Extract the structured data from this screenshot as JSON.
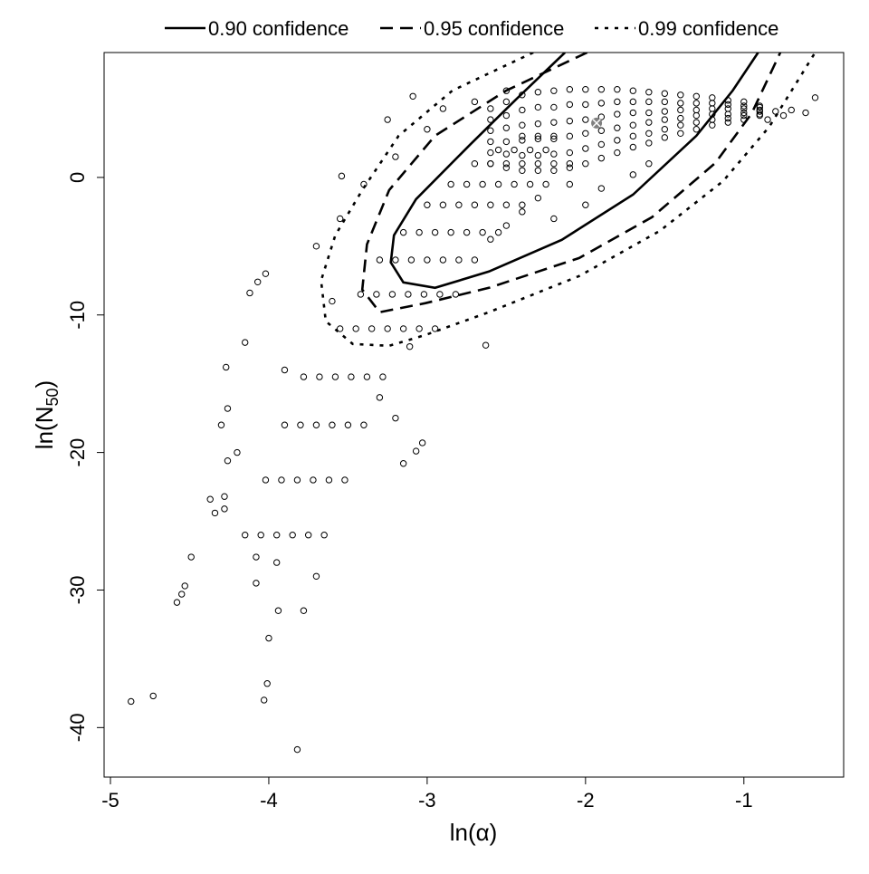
{
  "chart_data": {
    "type": "scatter",
    "title": "",
    "xlabel": "ln(α)",
    "ylabel": {
      "main": "ln(N",
      "sub": "50",
      "close": ")"
    },
    "xlim": [
      -5.04,
      -0.37
    ],
    "ylim": [
      -43.6,
      9.08
    ],
    "xticks": [
      -5,
      -4,
      -3,
      -2,
      -1
    ],
    "yticks": [
      -40,
      -30,
      -20,
      -10,
      0
    ],
    "grid": false,
    "legend_placement": "top, outside",
    "point_style": "open circle",
    "best_estimate": {
      "x": -1.93,
      "y": 3.95,
      "marker": "grey circled cross",
      "color": "#808080"
    },
    "contours": [
      {
        "name": "0.90 confidence",
        "style": "solid",
        "points": [
          [
            -2.13,
            9.08
          ],
          [
            -2.44,
            5.66
          ],
          [
            -2.73,
            2.37
          ],
          [
            -3.07,
            -1.58
          ],
          [
            -3.21,
            -4.21
          ],
          [
            -3.23,
            -6.18
          ],
          [
            -3.15,
            -7.63
          ],
          [
            -2.95,
            -8.03
          ],
          [
            -2.61,
            -6.84
          ],
          [
            -2.15,
            -4.54
          ],
          [
            -1.7,
            -1.25
          ],
          [
            -1.3,
            3.03
          ],
          [
            -1.07,
            6.32
          ],
          [
            -0.91,
            9.08
          ]
        ]
      },
      {
        "name": "0.95 confidence",
        "style": "dashed",
        "points": [
          [
            -1.99,
            9.08
          ],
          [
            -2.5,
            6.32
          ],
          [
            -2.95,
            3.03
          ],
          [
            -3.24,
            -0.92
          ],
          [
            -3.38,
            -4.87
          ],
          [
            -3.41,
            -8.16
          ],
          [
            -3.3,
            -9.8
          ],
          [
            -3.01,
            -9.14
          ],
          [
            -2.61,
            -8.03
          ],
          [
            -2.04,
            -5.86
          ],
          [
            -1.58,
            -2.89
          ],
          [
            -1.18,
            1.05
          ],
          [
            -0.95,
            4.67
          ],
          [
            -0.77,
            9.08
          ]
        ]
      },
      {
        "name": "0.99 confidence",
        "style": "dotted",
        "points": [
          [
            -2.33,
            9.08
          ],
          [
            -2.84,
            6.32
          ],
          [
            -3.18,
            3.03
          ],
          [
            -3.41,
            -0.92
          ],
          [
            -3.58,
            -4.21
          ],
          [
            -3.67,
            -7.5
          ],
          [
            -3.64,
            -10.46
          ],
          [
            -3.47,
            -12.11
          ],
          [
            -3.24,
            -12.24
          ],
          [
            -3.01,
            -11.45
          ],
          [
            -2.61,
            -9.8
          ],
          [
            -2.04,
            -7.17
          ],
          [
            -1.53,
            -3.88
          ],
          [
            -1.13,
            -0.26
          ],
          [
            -0.84,
            3.68
          ],
          [
            -0.55,
            9.08
          ]
        ]
      }
    ],
    "points": [
      [
        -4.87,
        -38.1
      ],
      [
        -4.73,
        -37.7
      ],
      [
        -3.82,
        -41.6
      ],
      [
        -4.03,
        -38.0
      ],
      [
        -4.01,
        -36.8
      ],
      [
        -4.0,
        -33.5
      ],
      [
        -3.94,
        -31.5
      ],
      [
        -3.78,
        -31.5
      ],
      [
        -4.58,
        -30.9
      ],
      [
        -4.55,
        -30.3
      ],
      [
        -4.53,
        -29.7
      ],
      [
        -4.49,
        -27.6
      ],
      [
        -4.34,
        -24.4
      ],
      [
        -4.28,
        -24.1
      ],
      [
        -4.28,
        -23.2
      ],
      [
        -4.26,
        -20.6
      ],
      [
        -4.26,
        -16.8
      ],
      [
        -4.27,
        -13.8
      ],
      [
        -4.37,
        -23.4
      ],
      [
        -4.08,
        -27.6
      ],
      [
        -4.08,
        -29.5
      ],
      [
        -4.12,
        -8.4
      ],
      [
        -4.02,
        -7.0
      ],
      [
        -4.07,
        -7.6
      ],
      [
        -3.11,
        -12.3
      ],
      [
        -3.03,
        -19.3
      ],
      [
        -3.07,
        -19.9
      ],
      [
        -2.63,
        -12.2
      ],
      [
        -3.09,
        5.9
      ],
      [
        -3.25,
        4.2
      ],
      [
        -3.54,
        0.1
      ],
      [
        -0.55,
        5.8
      ],
      [
        -0.61,
        4.7
      ],
      [
        -4.3,
        -18
      ],
      [
        -4.15,
        -12
      ],
      [
        -4.2,
        -20
      ],
      [
        -3.9,
        -14
      ],
      [
        -3.3,
        -16
      ],
      [
        -3.15,
        -20.8
      ],
      [
        -3.2,
        -17.5
      ],
      [
        -3.7,
        -29
      ],
      [
        -3.95,
        -28
      ],
      [
        -3.6,
        -9
      ],
      [
        -3.7,
        -5
      ],
      [
        -3.55,
        -3
      ],
      [
        -3.4,
        -0.5
      ],
      [
        -3.2,
        1.5
      ],
      [
        -3.0,
        3.5
      ],
      [
        -2.9,
        5
      ],
      [
        -2.7,
        5.5
      ],
      [
        -2.5,
        6.3
      ],
      [
        -4.15,
        -26
      ],
      [
        -4.05,
        -26
      ],
      [
        -3.95,
        -26
      ],
      [
        -3.85,
        -26
      ],
      [
        -3.75,
        -26
      ],
      [
        -3.65,
        -26
      ],
      [
        -4.02,
        -22
      ],
      [
        -3.92,
        -22
      ],
      [
        -3.82,
        -22
      ],
      [
        -3.72,
        -22
      ],
      [
        -3.62,
        -22
      ],
      [
        -3.52,
        -22
      ],
      [
        -3.9,
        -18
      ],
      [
        -3.8,
        -18
      ],
      [
        -3.7,
        -18
      ],
      [
        -3.6,
        -18
      ],
      [
        -3.5,
        -18
      ],
      [
        -3.4,
        -18
      ],
      [
        -3.78,
        -14.5
      ],
      [
        -3.68,
        -14.5
      ],
      [
        -3.58,
        -14.5
      ],
      [
        -3.48,
        -14.5
      ],
      [
        -3.38,
        -14.5
      ],
      [
        -3.28,
        -14.5
      ],
      [
        -3.55,
        -11
      ],
      [
        -3.45,
        -11
      ],
      [
        -3.35,
        -11
      ],
      [
        -3.25,
        -11
      ],
      [
        -3.15,
        -11
      ],
      [
        -3.05,
        -11
      ],
      [
        -2.95,
        -11
      ],
      [
        -3.42,
        -8.5
      ],
      [
        -3.32,
        -8.5
      ],
      [
        -3.22,
        -8.5
      ],
      [
        -3.12,
        -8.5
      ],
      [
        -3.02,
        -8.5
      ],
      [
        -2.92,
        -8.5
      ],
      [
        -2.82,
        -8.5
      ],
      [
        -3.3,
        -6
      ],
      [
        -3.2,
        -6
      ],
      [
        -3.1,
        -6
      ],
      [
        -3.0,
        -6
      ],
      [
        -2.9,
        -6
      ],
      [
        -2.8,
        -6
      ],
      [
        -2.7,
        -6
      ],
      [
        -3.15,
        -4
      ],
      [
        -3.05,
        -4
      ],
      [
        -2.95,
        -4
      ],
      [
        -2.85,
        -4
      ],
      [
        -2.75,
        -4
      ],
      [
        -2.65,
        -4
      ],
      [
        -2.55,
        -4
      ],
      [
        -3.0,
        -2
      ],
      [
        -2.9,
        -2
      ],
      [
        -2.8,
        -2
      ],
      [
        -2.7,
        -2
      ],
      [
        -2.6,
        -2
      ],
      [
        -2.5,
        -2
      ],
      [
        -2.4,
        -2
      ],
      [
        -2.85,
        -0.5
      ],
      [
        -2.75,
        -0.5
      ],
      [
        -2.65,
        -0.5
      ],
      [
        -2.55,
        -0.5
      ],
      [
        -2.45,
        -0.5
      ],
      [
        -2.35,
        -0.5
      ],
      [
        -2.25,
        -0.5
      ],
      [
        -2.7,
        1
      ],
      [
        -2.6,
        1
      ],
      [
        -2.5,
        1
      ],
      [
        -2.4,
        1
      ],
      [
        -2.3,
        1
      ],
      [
        -2.2,
        1
      ],
      [
        -2.1,
        1
      ],
      [
        -2.55,
        2
      ],
      [
        -2.45,
        2
      ],
      [
        -2.35,
        2
      ],
      [
        -2.25,
        2
      ],
      [
        -2.4,
        3
      ],
      [
        -2.3,
        3
      ],
      [
        -2.2,
        3
      ],
      [
        -2.6,
        1.0
      ],
      [
        -2.6,
        1.8
      ],
      [
        -2.6,
        2.6
      ],
      [
        -2.6,
        3.4
      ],
      [
        -2.6,
        4.2
      ],
      [
        -2.6,
        5.0
      ],
      [
        -2.5,
        0.7
      ],
      [
        -2.5,
        1.7
      ],
      [
        -2.5,
        2.6
      ],
      [
        -2.5,
        3.6
      ],
      [
        -2.5,
        4.5
      ],
      [
        -2.5,
        5.5
      ],
      [
        -2.4,
        0.5
      ],
      [
        -2.4,
        1.6
      ],
      [
        -2.4,
        2.7
      ],
      [
        -2.4,
        3.8
      ],
      [
        -2.4,
        4.9
      ],
      [
        -2.4,
        6.0
      ],
      [
        -2.3,
        0.5
      ],
      [
        -2.3,
        1.6
      ],
      [
        -2.3,
        2.8
      ],
      [
        -2.3,
        3.9
      ],
      [
        -2.3,
        5.1
      ],
      [
        -2.3,
        6.2
      ],
      [
        -2.2,
        0.5
      ],
      [
        -2.2,
        1.7
      ],
      [
        -2.2,
        2.8
      ],
      [
        -2.2,
        4.0
      ],
      [
        -2.2,
        5.1
      ],
      [
        -2.2,
        6.3
      ],
      [
        -2.1,
        0.7
      ],
      [
        -2.1,
        1.8
      ],
      [
        -2.1,
        3.0
      ],
      [
        -2.1,
        4.1
      ],
      [
        -2.1,
        5.3
      ],
      [
        -2.1,
        6.4
      ],
      [
        -2.0,
        1.0
      ],
      [
        -2.0,
        2.1
      ],
      [
        -2.0,
        3.2
      ],
      [
        -2.0,
        4.2
      ],
      [
        -2.0,
        5.3
      ],
      [
        -2.0,
        6.4
      ],
      [
        -1.9,
        1.4
      ],
      [
        -1.9,
        2.4
      ],
      [
        -1.9,
        3.4
      ],
      [
        -1.9,
        4.4
      ],
      [
        -1.9,
        5.4
      ],
      [
        -1.9,
        6.4
      ],
      [
        -1.8,
        1.8
      ],
      [
        -1.8,
        2.7
      ],
      [
        -1.8,
        3.6
      ],
      [
        -1.8,
        4.6
      ],
      [
        -1.8,
        5.5
      ],
      [
        -1.8,
        6.4
      ],
      [
        -1.7,
        2.2
      ],
      [
        -1.7,
        3.0
      ],
      [
        -1.7,
        3.8
      ],
      [
        -1.7,
        4.7
      ],
      [
        -1.7,
        5.5
      ],
      [
        -1.7,
        6.3
      ],
      [
        -1.6,
        2.5
      ],
      [
        -1.6,
        3.2
      ],
      [
        -1.6,
        4.0
      ],
      [
        -1.6,
        4.7
      ],
      [
        -1.6,
        5.5
      ],
      [
        -1.6,
        6.2
      ],
      [
        -1.5,
        2.9
      ],
      [
        -1.5,
        3.5
      ],
      [
        -1.5,
        4.2
      ],
      [
        -1.5,
        4.8
      ],
      [
        -1.5,
        5.5
      ],
      [
        -1.5,
        6.1
      ],
      [
        -1.4,
        3.2
      ],
      [
        -1.4,
        3.8
      ],
      [
        -1.4,
        4.3
      ],
      [
        -1.4,
        4.9
      ],
      [
        -1.4,
        5.4
      ],
      [
        -1.4,
        6.0
      ],
      [
        -1.3,
        3.5
      ],
      [
        -1.3,
        4.0
      ],
      [
        -1.3,
        4.5
      ],
      [
        -1.3,
        4.9
      ],
      [
        -1.3,
        5.4
      ],
      [
        -1.3,
        5.9
      ],
      [
        -1.2,
        3.8
      ],
      [
        -1.2,
        4.2
      ],
      [
        -1.2,
        4.6
      ],
      [
        -1.2,
        5.0
      ],
      [
        -1.2,
        5.4
      ],
      [
        -1.2,
        5.8
      ],
      [
        -1.1,
        4.0
      ],
      [
        -1.1,
        4.3
      ],
      [
        -1.1,
        4.6
      ],
      [
        -1.1,
        5.0
      ],
      [
        -1.1,
        5.3
      ],
      [
        -1.1,
        5.6
      ],
      [
        -1.0,
        4.2
      ],
      [
        -1.0,
        4.5
      ],
      [
        -1.0,
        4.7
      ],
      [
        -1.0,
        5.0
      ],
      [
        -1.0,
        5.2
      ],
      [
        -1.0,
        5.5
      ],
      [
        -0.9,
        4.5
      ],
      [
        -0.9,
        4.6
      ],
      [
        -0.9,
        4.8
      ],
      [
        -0.9,
        4.9
      ],
      [
        -0.9,
        5.1
      ],
      [
        -0.9,
        5.2
      ],
      [
        -0.8,
        4.8
      ],
      [
        -0.75,
        4.5
      ],
      [
        -0.7,
        4.9
      ],
      [
        -0.85,
        4.2
      ],
      [
        -2.3,
        -1.5
      ],
      [
        -2.1,
        -0.5
      ],
      [
        -1.9,
        -0.8
      ],
      [
        -1.7,
        0.2
      ],
      [
        -2.4,
        -2.5
      ],
      [
        -2.2,
        -3.0
      ],
      [
        -2.0,
        -2.0
      ],
      [
        -1.6,
        1.0
      ],
      [
        -2.6,
        -4.5
      ],
      [
        -2.5,
        -3.5
      ]
    ]
  }
}
